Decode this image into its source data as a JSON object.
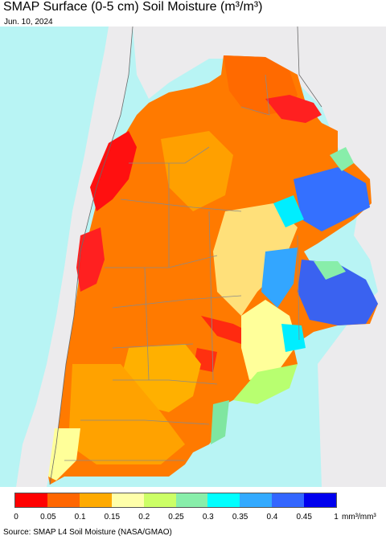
{
  "title": "SMAP Surface (0-5 cm) Soil Moisture (m³/m³)",
  "date": "Jun. 10, 2024",
  "legend": {
    "ticks": [
      "0",
      "0.05",
      "0.1",
      "0.15",
      "0.2",
      "0.25",
      "0.3",
      "0.35",
      "0.4",
      "0.45",
      "1"
    ],
    "unit": "mm³/mm³",
    "colors": [
      "#ff0000",
      "#ff6600",
      "#ffaa00",
      "#ffffaa",
      "#ccff66",
      "#88eeaa",
      "#00ffff",
      "#33aaff",
      "#3366ff",
      "#0000ee"
    ]
  },
  "map": {
    "ocean_color": "#b8f4f4",
    "land_outside_color": "#ecebed",
    "border_color": "#888888"
  },
  "source": "Source: SMAP L4 Soil Moisture (NASA/GMAO)"
}
